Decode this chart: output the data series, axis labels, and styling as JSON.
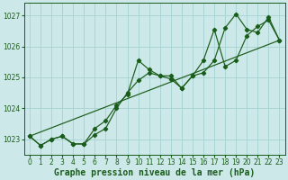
{
  "bg_color": "#cce8e8",
  "grid_color": "#aad4d4",
  "line_color": "#1a5c1a",
  "xlabel": "Graphe pression niveau de la mer (hPa)",
  "xlabel_color": "#1a5c1a",
  "xlabel_fontsize": 7.0,
  "xlim": [
    -0.5,
    23.5
  ],
  "ylim": [
    1022.5,
    1027.4
  ],
  "yticks": [
    1023,
    1024,
    1025,
    1026,
    1027
  ],
  "xticks": [
    0,
    1,
    2,
    3,
    4,
    5,
    6,
    7,
    8,
    9,
    10,
    11,
    12,
    13,
    14,
    15,
    16,
    17,
    18,
    19,
    20,
    21,
    22,
    23
  ],
  "line1_x": [
    0,
    1,
    2,
    3,
    4,
    5,
    6,
    7,
    8,
    9,
    10,
    11,
    12,
    13,
    14,
    15,
    16,
    17,
    18,
    19,
    20,
    21,
    22,
    23
  ],
  "line1": [
    1023.1,
    1022.8,
    1023.0,
    1023.1,
    1022.85,
    1022.85,
    1023.35,
    1023.6,
    1024.1,
    1024.45,
    1025.55,
    1025.25,
    1025.05,
    1025.05,
    1024.65,
    1025.05,
    1025.15,
    1025.55,
    1026.6,
    1027.05,
    1026.55,
    1026.45,
    1026.95,
    1026.2
  ],
  "line2_x": [
    0,
    1,
    2,
    3,
    4,
    5,
    6,
    7,
    8,
    9,
    10,
    11,
    12,
    13,
    14,
    15,
    16,
    17,
    18,
    19,
    20,
    21,
    22,
    23
  ],
  "line2": [
    1023.1,
    1022.8,
    1023.0,
    1023.1,
    1022.85,
    1022.85,
    1023.15,
    1023.35,
    1024.0,
    1024.5,
    1024.9,
    1025.15,
    1025.05,
    1024.95,
    1024.65,
    1025.05,
    1025.55,
    1026.55,
    1025.35,
    1025.55,
    1026.35,
    1026.65,
    1026.85,
    1026.2
  ],
  "line3_x": [
    0,
    23
  ],
  "line3": [
    1023.1,
    1026.2
  ],
  "tick_fontsize": 5.5,
  "tick_color": "#1a5c1a"
}
